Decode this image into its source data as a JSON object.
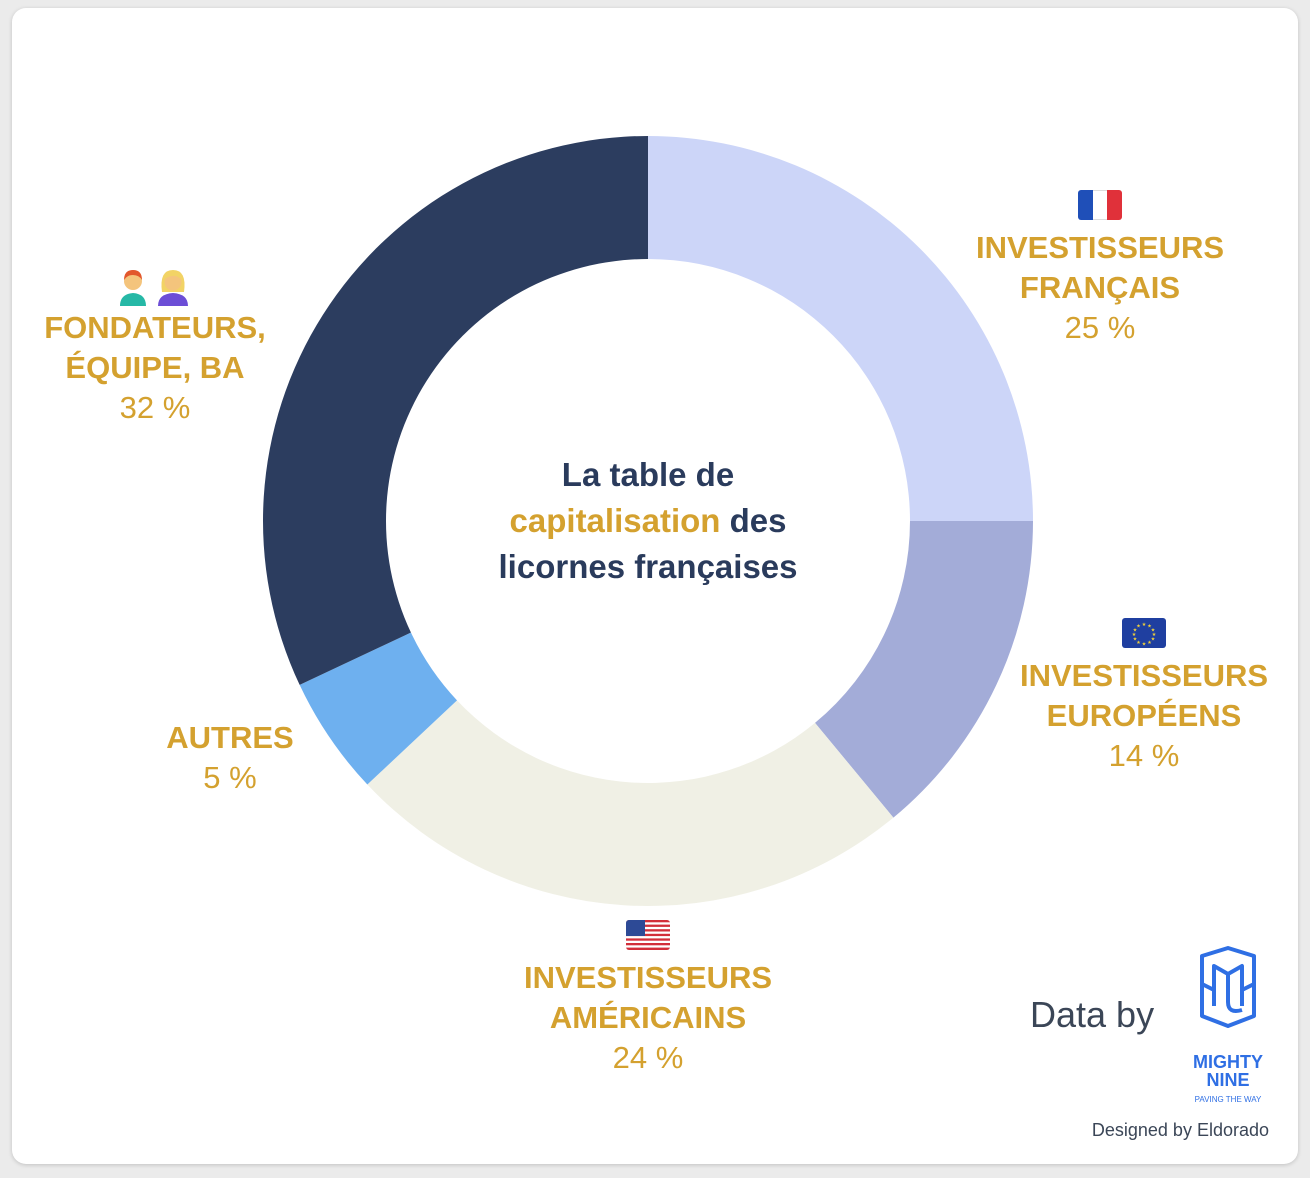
{
  "chart_data": {
    "type": "pie",
    "variant": "donut",
    "title_parts": [
      "La table de",
      "capitalisation",
      "des",
      "licornes françaises"
    ],
    "slices": [
      {
        "label": "INVESTISSEURS FRANÇAIS",
        "value": 25,
        "pct_label": "25 %",
        "color": "#ccd5f8",
        "icon": "france-flag-icon"
      },
      {
        "label": "INVESTISSEURS EUROPÉENS",
        "value": 14,
        "pct_label": "14 %",
        "color": "#a3acd8",
        "icon": "eu-flag-icon"
      },
      {
        "label": "INVESTISSEURS AMÉRICAINS",
        "value": 24,
        "pct_label": "24 %",
        "color": "#f0f0e5",
        "icon": "usa-flag-icon"
      },
      {
        "label": "AUTRES",
        "value": 5,
        "pct_label": "5 %",
        "color": "#6eb0ef",
        "icon": ""
      },
      {
        "label": "FONDATEURS, ÉQUIPE, BA",
        "value": 32,
        "pct_label": "32 %",
        "color": "#2c3d5f",
        "icon": "founders-people-icon"
      }
    ]
  },
  "labels": {
    "fr": {
      "name": "INVESTISSEURS\nFRANÇAIS",
      "pct": "25 %"
    },
    "eu": {
      "name": "INVESTISSEURS\nEUROPÉENS",
      "pct": "14 %"
    },
    "us": {
      "name": "INVESTISSEURS\nAMÉRICAINS",
      "pct": "24 %"
    },
    "autres": {
      "name": "AUTRES",
      "pct": "5 %"
    },
    "fondateurs": {
      "name": "FONDATEURS,\nÉQUIPE, BA",
      "pct": "32 %"
    }
  },
  "footer": {
    "data_by": "Data by",
    "logo_line1": "MIGHTY",
    "logo_line2": "NINE",
    "logo_tagline": "PAVING THE WAY",
    "designed_by": "Designed by Eldorado"
  },
  "colors": {
    "accent": "#d4a12f",
    "title": "#2a3b5c",
    "logo_blue": "#2f6fe4"
  }
}
